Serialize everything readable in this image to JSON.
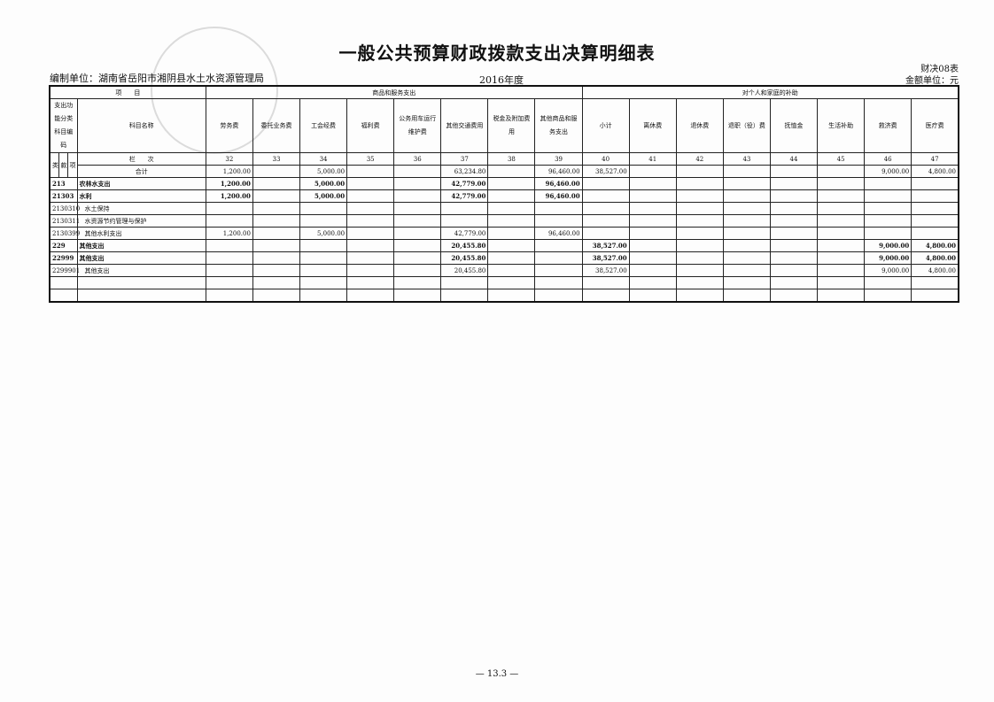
{
  "title": "一般公共预算财政拨款支出决算明细表",
  "unit": "编制单位：湖南省岳阳市湘阴县水土水资源管理局",
  "year": "2016年度",
  "form_no": "财决08表",
  "currency": "金额单位：元",
  "header": {
    "item": "项　　目",
    "group1": "商品和服务支出",
    "group2": "对个人和家庭的补助",
    "code": "支出功能分类科目编码",
    "name": "科目名称",
    "lei": "类",
    "kuan": "款",
    "xiang": "项",
    "lanci": "栏　　次",
    "columns": [
      "劳务费",
      "委托业务费",
      "工会经费",
      "福利费",
      "公务用车运行维护费",
      "其他交通费用",
      "税金及附加费用",
      "其他商品和服务支出",
      "小计",
      "离休费",
      "退休费",
      "退职（役）费",
      "抚恤金",
      "生活补助",
      "救济费",
      "医疗费"
    ],
    "numbers": [
      "32",
      "33",
      "34",
      "35",
      "36",
      "37",
      "38",
      "39",
      "40",
      "41",
      "42",
      "43",
      "44",
      "45",
      "46",
      "47"
    ]
  },
  "total": {
    "label": "合计",
    "values": [
      "1,200.00",
      "",
      "5,000.00",
      "",
      "",
      "63,234.80",
      "",
      "96,460.00",
      "38,527.00",
      "",
      "",
      "",
      "",
      "",
      "9,000.00",
      "4,800.00"
    ]
  },
  "rows": [
    {
      "code": "213",
      "name": "农林水支出",
      "bold": true,
      "values": [
        "1,200.00",
        "",
        "5,000.00",
        "",
        "",
        "42,779.00",
        "",
        "96,460.00",
        "",
        "",
        "",
        "",
        "",
        "",
        "",
        ""
      ]
    },
    {
      "code": "21303",
      "name": "水利",
      "bold": true,
      "values": [
        "1,200.00",
        "",
        "5,000.00",
        "",
        "",
        "42,779.00",
        "",
        "96,460.00",
        "",
        "",
        "",
        "",
        "",
        "",
        "",
        ""
      ]
    },
    {
      "code": "2130310",
      "name": "水土保持",
      "bold": false,
      "values": [
        "",
        "",
        "",
        "",
        "",
        "",
        "",
        "",
        "",
        "",
        "",
        "",
        "",
        "",
        "",
        ""
      ]
    },
    {
      "code": "2130311",
      "name": "水资源节约管理与保护",
      "bold": false,
      "values": [
        "",
        "",
        "",
        "",
        "",
        "",
        "",
        "",
        "",
        "",
        "",
        "",
        "",
        "",
        "",
        ""
      ]
    },
    {
      "code": "2130399",
      "name": "其他水利支出",
      "bold": false,
      "values": [
        "1,200.00",
        "",
        "5,000.00",
        "",
        "",
        "42,779.00",
        "",
        "96,460.00",
        "",
        "",
        "",
        "",
        "",
        "",
        "",
        ""
      ]
    },
    {
      "code": "229",
      "name": "其他支出",
      "bold": true,
      "values": [
        "",
        "",
        "",
        "",
        "",
        "20,455.80",
        "",
        "",
        "38,527.00",
        "",
        "",
        "",
        "",
        "",
        "9,000.00",
        "4,800.00"
      ]
    },
    {
      "code": "22999",
      "name": "其他支出",
      "bold": true,
      "values": [
        "",
        "",
        "",
        "",
        "",
        "20,455.80",
        "",
        "",
        "38,527.00",
        "",
        "",
        "",
        "",
        "",
        "9,000.00",
        "4,800.00"
      ]
    },
    {
      "code": "2299901",
      "name": "其他支出",
      "bold": false,
      "values": [
        "",
        "",
        "",
        "",
        "",
        "20,455.80",
        "",
        "",
        "38,527.00",
        "",
        "",
        "",
        "",
        "",
        "9,000.00",
        "4,800.00"
      ]
    },
    {
      "code": "",
      "name": "",
      "bold": false,
      "values": [
        "",
        "",
        "",
        "",
        "",
        "",
        "",
        "",
        "",
        "",
        "",
        "",
        "",
        "",
        "",
        ""
      ]
    },
    {
      "code": "",
      "name": "",
      "bold": false,
      "values": [
        "",
        "",
        "",
        "",
        "",
        "",
        "",
        "",
        "",
        "",
        "",
        "",
        "",
        "",
        "",
        ""
      ]
    }
  ],
  "footer": "— 13.3 —"
}
